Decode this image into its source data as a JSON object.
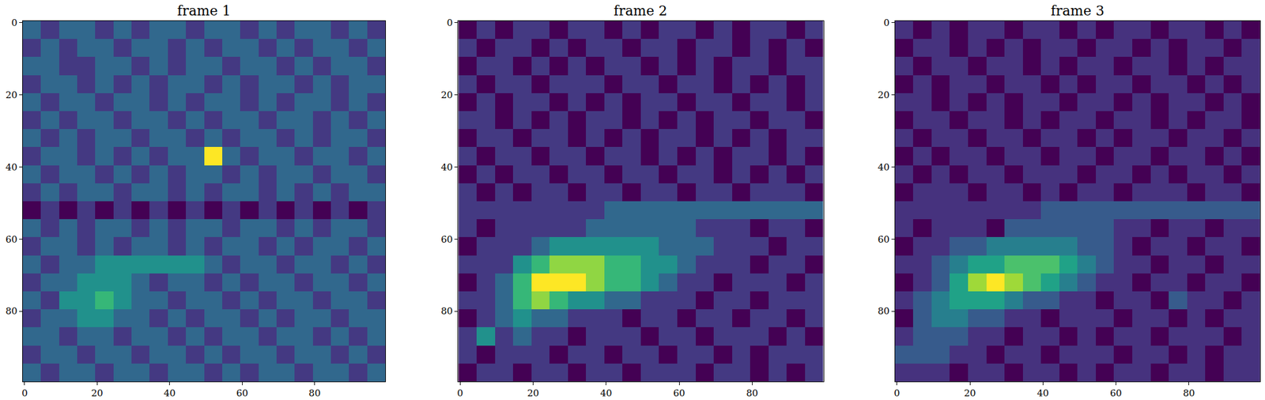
{
  "chart_data": [
    {
      "type": "heatmap",
      "title": "frame 1",
      "color": "Viridis",
      "x": [
        2,
        7,
        12,
        17,
        22,
        27,
        32,
        37,
        42,
        47,
        52,
        57,
        62,
        67,
        72,
        77,
        82,
        87,
        92,
        97
      ],
      "y": [
        2,
        7,
        12,
        17,
        22,
        27,
        32,
        37,
        42,
        47,
        52,
        57,
        62,
        67,
        72,
        77,
        82,
        87,
        92,
        97
      ],
      "xlim": [
        -0.5,
        99.5
      ],
      "ylim": [
        99.5,
        -0.5
      ],
      "xticks": [
        0,
        20,
        40,
        60,
        80
      ],
      "yticks": [
        0,
        20,
        40,
        60,
        80
      ],
      "z": [
        [
          2,
          1,
          2,
          2,
          1,
          2,
          1,
          2,
          2,
          1,
          2,
          2,
          1,
          2,
          1,
          2,
          2,
          1,
          2,
          1
        ],
        [
          1,
          2,
          1,
          2,
          2,
          1,
          2,
          2,
          1,
          2,
          1,
          2,
          2,
          1,
          2,
          1,
          2,
          2,
          1,
          2
        ],
        [
          2,
          2,
          1,
          1,
          2,
          2,
          1,
          2,
          1,
          2,
          2,
          1,
          2,
          2,
          1,
          2,
          1,
          2,
          2,
          1
        ],
        [
          1,
          2,
          2,
          1,
          2,
          1,
          2,
          1,
          2,
          2,
          1,
          2,
          1,
          2,
          2,
          1,
          2,
          1,
          2,
          2
        ],
        [
          2,
          1,
          2,
          2,
          1,
          2,
          2,
          1,
          2,
          1,
          2,
          2,
          1,
          2,
          1,
          2,
          2,
          1,
          2,
          1
        ],
        [
          1,
          2,
          1,
          2,
          2,
          1,
          2,
          2,
          1,
          2,
          1,
          2,
          2,
          1,
          2,
          2,
          1,
          2,
          1,
          2
        ],
        [
          2,
          1,
          2,
          1,
          2,
          2,
          1,
          2,
          2,
          1,
          2,
          1,
          2,
          2,
          1,
          2,
          1,
          2,
          2,
          1
        ],
        [
          1,
          2,
          2,
          1,
          2,
          1,
          2,
          1,
          2,
          2,
          6,
          2,
          1,
          2,
          2,
          1,
          2,
          2,
          1,
          2
        ],
        [
          2,
          1,
          2,
          2,
          1,
          2,
          1,
          2,
          1,
          2,
          2,
          1,
          2,
          1,
          2,
          2,
          1,
          2,
          2,
          1
        ],
        [
          1,
          2,
          1,
          2,
          2,
          1,
          2,
          2,
          1,
          2,
          1,
          2,
          2,
          1,
          2,
          1,
          2,
          1,
          2,
          2
        ],
        [
          0,
          1,
          0,
          1,
          0,
          1,
          0,
          1,
          0,
          1,
          0,
          1,
          0,
          1,
          0,
          1,
          0,
          1,
          0,
          1
        ],
        [
          2,
          1,
          2,
          1,
          2,
          2,
          1,
          2,
          1,
          2,
          2,
          1,
          2,
          2,
          1,
          2,
          1,
          2,
          2,
          1
        ],
        [
          1,
          2,
          2,
          1,
          2,
          1,
          2,
          2,
          1,
          2,
          1,
          2,
          2,
          1,
          2,
          1,
          2,
          2,
          1,
          2
        ],
        [
          2,
          1,
          2,
          2,
          3,
          3,
          3,
          3,
          3,
          3,
          2,
          1,
          2,
          2,
          1,
          2,
          2,
          1,
          2,
          1
        ],
        [
          1,
          2,
          2,
          3,
          3,
          3,
          2,
          1,
          2,
          2,
          1,
          2,
          1,
          2,
          2,
          1,
          2,
          2,
          1,
          2
        ],
        [
          2,
          1,
          3,
          3,
          4,
          3,
          2,
          2,
          1,
          2,
          2,
          1,
          2,
          1,
          2,
          2,
          1,
          2,
          2,
          1
        ],
        [
          1,
          2,
          2,
          3,
          3,
          2,
          2,
          1,
          2,
          1,
          2,
          2,
          1,
          2,
          1,
          2,
          2,
          1,
          2,
          2
        ],
        [
          2,
          2,
          1,
          2,
          2,
          1,
          2,
          2,
          1,
          2,
          1,
          2,
          2,
          1,
          2,
          2,
          1,
          2,
          1,
          2
        ],
        [
          1,
          2,
          2,
          1,
          2,
          2,
          1,
          2,
          2,
          1,
          2,
          1,
          2,
          2,
          1,
          2,
          2,
          1,
          2,
          1
        ],
        [
          2,
          1,
          2,
          2,
          1,
          2,
          2,
          1,
          2,
          2,
          1,
          2,
          1,
          2,
          2,
          1,
          2,
          2,
          1,
          2
        ]
      ]
    },
    {
      "type": "heatmap",
      "title": "frame 2",
      "color": "Viridis",
      "x": [
        2,
        7,
        12,
        17,
        22,
        27,
        32,
        37,
        42,
        47,
        52,
        57,
        62,
        67,
        72,
        77,
        82,
        87,
        92,
        97
      ],
      "y": [
        2,
        7,
        12,
        17,
        22,
        27,
        32,
        37,
        42,
        47,
        52,
        57,
        62,
        67,
        72,
        77,
        82,
        87,
        92,
        97
      ],
      "xlim": [
        -0.5,
        99.5
      ],
      "ylim": [
        99.5,
        -0.5
      ],
      "xticks": [
        0,
        20,
        40,
        60,
        80
      ],
      "yticks": [
        0,
        20,
        40,
        60,
        80
      ],
      "z": [
        [
          1,
          2,
          1,
          2,
          2,
          1,
          2,
          2,
          1,
          2,
          1,
          2,
          2,
          1,
          2,
          1,
          2,
          2,
          1,
          2
        ],
        [
          2,
          1,
          2,
          2,
          1,
          2,
          1,
          2,
          2,
          1,
          2,
          2,
          1,
          2,
          2,
          1,
          2,
          1,
          2,
          1
        ],
        [
          1,
          2,
          2,
          1,
          2,
          1,
          2,
          1,
          2,
          2,
          1,
          2,
          1,
          2,
          1,
          2,
          2,
          1,
          2,
          2
        ],
        [
          2,
          1,
          2,
          2,
          1,
          2,
          2,
          2,
          1,
          2,
          2,
          1,
          2,
          2,
          1,
          2,
          1,
          2,
          1,
          2
        ],
        [
          1,
          2,
          1,
          2,
          2,
          1,
          2,
          1,
          2,
          1,
          2,
          2,
          1,
          2,
          2,
          1,
          2,
          2,
          1,
          2
        ],
        [
          2,
          2,
          1,
          2,
          1,
          2,
          1,
          2,
          2,
          1,
          2,
          1,
          2,
          1,
          2,
          2,
          1,
          2,
          2,
          1
        ],
        [
          1,
          2,
          2,
          1,
          2,
          2,
          1,
          2,
          1,
          2,
          1,
          2,
          2,
          1,
          2,
          1,
          2,
          1,
          2,
          2
        ],
        [
          2,
          1,
          2,
          2,
          1,
          2,
          2,
          1,
          2,
          2,
          1,
          2,
          1,
          2,
          1,
          2,
          2,
          1,
          2,
          1
        ],
        [
          1,
          2,
          1,
          2,
          2,
          1,
          2,
          2,
          1,
          2,
          2,
          1,
          2,
          2,
          1,
          2,
          1,
          2,
          1,
          2
        ],
        [
          2,
          1,
          2,
          1,
          2,
          2,
          1,
          2,
          2,
          1,
          2,
          2,
          1,
          2,
          2,
          1,
          2,
          2,
          2,
          1
        ],
        [
          2,
          2,
          2,
          2,
          2,
          2,
          2,
          2,
          3,
          3,
          3,
          3,
          3,
          3,
          3,
          3,
          3,
          3,
          3,
          3
        ],
        [
          2,
          1,
          2,
          2,
          2,
          2,
          2,
          3,
          3,
          3,
          3,
          3,
          3,
          2,
          2,
          2,
          1,
          2,
          2,
          1
        ],
        [
          1,
          2,
          2,
          2,
          3,
          4,
          4,
          4,
          4,
          4,
          4,
          3,
          3,
          3,
          2,
          2,
          2,
          1,
          2,
          2
        ],
        [
          2,
          2,
          2,
          4,
          5,
          6,
          6,
          6,
          5,
          5,
          4,
          4,
          3,
          2,
          2,
          2,
          1,
          2,
          2,
          1
        ],
        [
          1,
          2,
          3,
          5,
          7,
          7,
          7,
          6,
          5,
          5,
          4,
          3,
          2,
          2,
          1,
          2,
          2,
          2,
          1,
          2
        ],
        [
          2,
          2,
          3,
          5,
          6,
          5,
          4,
          4,
          3,
          3,
          2,
          2,
          2,
          1,
          2,
          2,
          1,
          2,
          2,
          2
        ],
        [
          1,
          2,
          3,
          4,
          3,
          3,
          2,
          2,
          2,
          1,
          2,
          2,
          1,
          2,
          2,
          1,
          2,
          2,
          1,
          2
        ],
        [
          2,
          4,
          2,
          3,
          2,
          2,
          1,
          2,
          2,
          2,
          1,
          2,
          2,
          1,
          2,
          2,
          2,
          1,
          2,
          1
        ],
        [
          2,
          1,
          2,
          2,
          2,
          1,
          2,
          2,
          1,
          2,
          2,
          1,
          2,
          2,
          1,
          2,
          1,
          2,
          2,
          2
        ],
        [
          1,
          2,
          2,
          1,
          2,
          2,
          1,
          2,
          2,
          1,
          2,
          2,
          2,
          1,
          2,
          2,
          1,
          2,
          1,
          2
        ]
      ]
    },
    {
      "type": "heatmap",
      "title": "frame 3",
      "color": "Viridis",
      "x": [
        2,
        7,
        12,
        17,
        22,
        27,
        32,
        37,
        42,
        47,
        52,
        57,
        62,
        67,
        72,
        77,
        82,
        87,
        92,
        97
      ],
      "y": [
        2,
        7,
        12,
        17,
        22,
        27,
        32,
        37,
        42,
        47,
        52,
        57,
        62,
        67,
        72,
        77,
        82,
        87,
        92,
        97
      ],
      "xlim": [
        -0.5,
        99.5
      ],
      "ylim": [
        99.5,
        -0.5
      ],
      "xticks": [
        0,
        20,
        40,
        60,
        80
      ],
      "yticks": [
        0,
        20,
        40,
        60,
        80
      ],
      "z": [
        [
          2,
          1,
          2,
          1,
          2,
          2,
          1,
          2,
          2,
          1,
          2,
          1,
          2,
          2,
          1,
          2,
          2,
          1,
          2,
          1
        ],
        [
          1,
          2,
          2,
          1,
          2,
          1,
          2,
          1,
          2,
          2,
          1,
          2,
          2,
          1,
          2,
          1,
          2,
          2,
          1,
          2
        ],
        [
          2,
          1,
          2,
          2,
          1,
          2,
          2,
          1,
          2,
          1,
          2,
          2,
          1,
          2,
          2,
          1,
          2,
          1,
          2,
          2
        ],
        [
          1,
          2,
          1,
          2,
          2,
          1,
          2,
          2,
          1,
          2,
          1,
          2,
          2,
          1,
          2,
          2,
          1,
          2,
          1,
          2
        ],
        [
          2,
          2,
          1,
          2,
          1,
          2,
          1,
          2,
          2,
          1,
          2,
          2,
          1,
          2,
          1,
          2,
          2,
          1,
          2,
          1
        ],
        [
          1,
          2,
          2,
          1,
          2,
          2,
          1,
          2,
          1,
          2,
          2,
          1,
          2,
          2,
          1,
          2,
          1,
          2,
          2,
          1
        ],
        [
          2,
          1,
          2,
          2,
          1,
          2,
          2,
          1,
          2,
          2,
          1,
          2,
          1,
          2,
          2,
          1,
          2,
          2,
          1,
          2
        ],
        [
          1,
          2,
          1,
          2,
          2,
          1,
          2,
          2,
          1,
          2,
          2,
          1,
          2,
          2,
          1,
          2,
          2,
          1,
          2,
          1
        ],
        [
          2,
          1,
          2,
          1,
          2,
          2,
          1,
          2,
          2,
          2,
          1,
          2,
          2,
          1,
          2,
          1,
          2,
          2,
          1,
          2
        ],
        [
          1,
          2,
          2,
          2,
          1,
          2,
          2,
          1,
          2,
          1,
          2,
          2,
          1,
          2,
          2,
          2,
          1,
          2,
          2,
          1
        ],
        [
          2,
          2,
          2,
          2,
          2,
          2,
          2,
          2,
          3,
          3,
          3,
          3,
          3,
          3,
          3,
          3,
          3,
          3,
          3,
          3
        ],
        [
          2,
          1,
          2,
          2,
          2,
          1,
          3,
          3,
          3,
          3,
          3,
          3,
          2,
          2,
          1,
          2,
          2,
          1,
          2,
          2
        ],
        [
          1,
          2,
          2,
          3,
          3,
          4,
          4,
          4,
          4,
          4,
          3,
          3,
          2,
          1,
          2,
          2,
          1,
          2,
          2,
          1
        ],
        [
          2,
          2,
          3,
          4,
          5,
          5,
          6,
          6,
          6,
          5,
          4,
          3,
          2,
          2,
          1,
          2,
          2,
          1,
          2,
          2
        ],
        [
          1,
          2,
          3,
          5,
          7,
          8,
          7,
          6,
          5,
          4,
          3,
          2,
          2,
          1,
          2,
          2,
          1,
          2,
          2,
          1
        ],
        [
          2,
          3,
          4,
          5,
          5,
          5,
          4,
          3,
          3,
          2,
          2,
          1,
          2,
          2,
          1,
          3,
          2,
          2,
          1,
          2
        ],
        [
          1,
          3,
          4,
          4,
          3,
          3,
          2,
          2,
          1,
          2,
          2,
          2,
          1,
          2,
          2,
          1,
          2,
          1,
          2,
          2
        ],
        [
          2,
          3,
          3,
          3,
          2,
          2,
          1,
          2,
          2,
          1,
          2,
          1,
          2,
          2,
          1,
          2,
          2,
          2,
          1,
          2
        ],
        [
          3,
          3,
          3,
          2,
          2,
          1,
          2,
          2,
          1,
          2,
          2,
          2,
          1,
          2,
          2,
          1,
          2,
          1,
          2,
          2
        ],
        [
          2,
          2,
          2,
          1,
          2,
          2,
          1,
          2,
          2,
          1,
          2,
          1,
          2,
          2,
          1,
          2,
          2,
          1,
          2,
          2
        ]
      ]
    }
  ]
}
